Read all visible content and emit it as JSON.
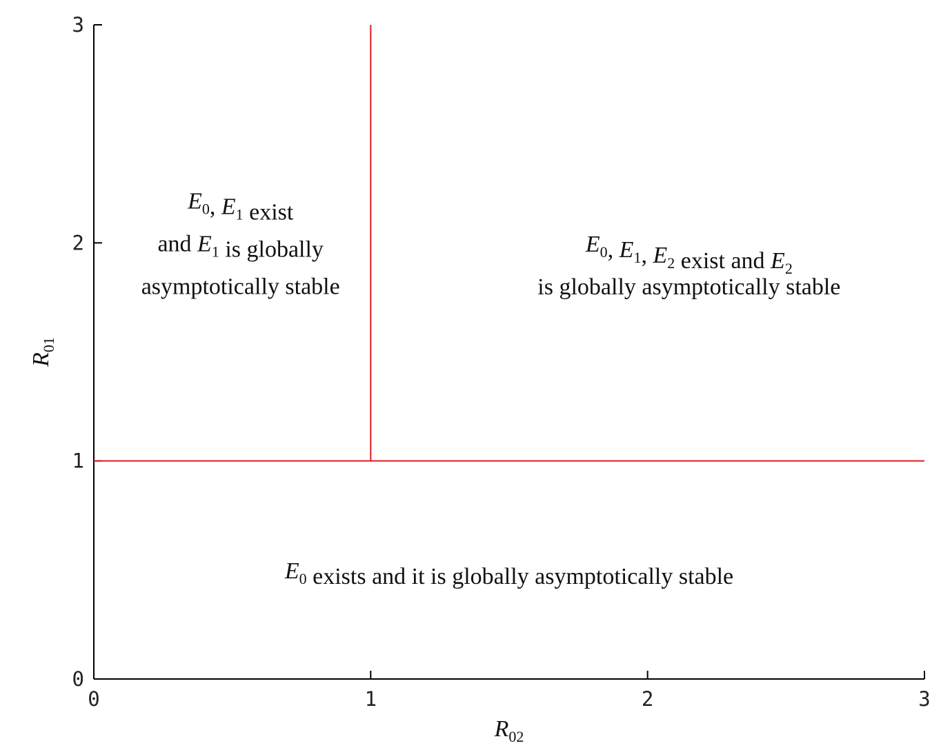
{
  "chart_data": {
    "type": "line",
    "title": "",
    "xlabel": {
      "base": "R",
      "sub": "02"
    },
    "ylabel": {
      "base": "R",
      "sub": "01"
    },
    "xlim": [
      0,
      3
    ],
    "ylim": [
      0,
      3
    ],
    "xticks": [
      "0",
      "1",
      "2",
      "3"
    ],
    "yticks": [
      "0",
      "1",
      "2",
      "3"
    ],
    "grid": false,
    "line_color": "#e31a1c",
    "series": [
      {
        "x": [
          0,
          3
        ],
        "y": [
          1,
          1
        ]
      },
      {
        "x": [
          1,
          1
        ],
        "y": [
          1,
          3
        ]
      }
    ],
    "annotations": [
      {
        "id": "region-top-left",
        "at": [
          0.53,
          2.0
        ],
        "lines": [
          [
            {
              "m": "E",
              "s": "0"
            },
            {
              "t": ", "
            },
            {
              "m": "E",
              "s": "1"
            },
            {
              "t": " exist"
            }
          ],
          [
            {
              "t": "and "
            },
            {
              "m": "E",
              "s": "1"
            },
            {
              "t": " is globally"
            }
          ],
          [
            {
              "t": "asymptotically stable"
            }
          ]
        ]
      },
      {
        "id": "region-top-right",
        "at": [
          2.15,
          1.9
        ],
        "lines": [
          [
            {
              "m": "E",
              "s": "0"
            },
            {
              "t": ", "
            },
            {
              "m": "E",
              "s": "1"
            },
            {
              "t": ", "
            },
            {
              "m": "E",
              "s": "2"
            },
            {
              "t": " exist and "
            },
            {
              "m": "E",
              "s": "2"
            }
          ],
          [
            {
              "t": "is globally asymptotically stable"
            }
          ]
        ]
      },
      {
        "id": "region-bottom",
        "at": [
          1.5,
          0.5
        ],
        "lines": [
          [
            {
              "m": "E",
              "s": "0"
            },
            {
              "t": " exists and it is globally asymptotically stable"
            }
          ]
        ]
      }
    ]
  }
}
